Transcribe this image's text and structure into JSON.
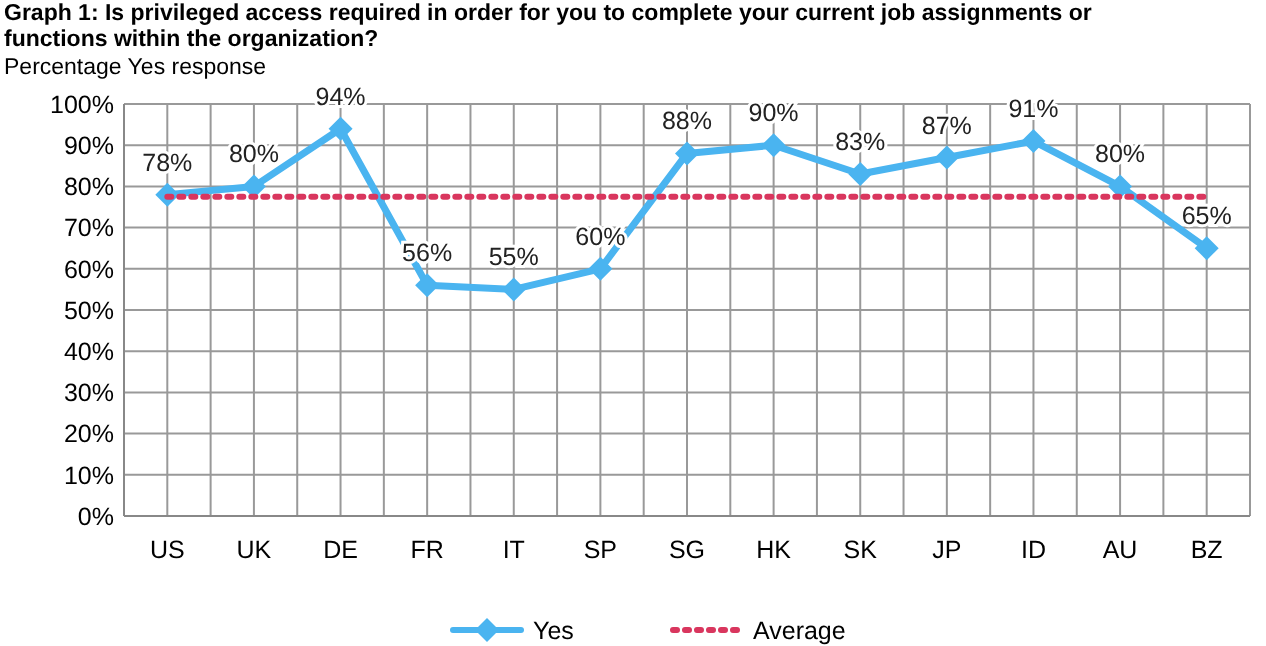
{
  "chart_data": {
    "type": "line",
    "title": "Graph 1: Is privileged access required in order for you to complete your current job assignments or functions within the organization?",
    "subtitle": "Percentage Yes response",
    "categories": [
      "US",
      "UK",
      "DE",
      "FR",
      "IT",
      "SP",
      "SG",
      "HK",
      "SK",
      "JP",
      "ID",
      "AU",
      "BZ"
    ],
    "series": [
      {
        "name": "Yes",
        "color": "#4ab4f0",
        "marker": "diamond",
        "line_style": "solid",
        "values": [
          78,
          80,
          94,
          56,
          55,
          60,
          88,
          90,
          83,
          87,
          91,
          80,
          65
        ],
        "value_labels": [
          "78%",
          "80%",
          "94%",
          "56%",
          "55%",
          "60%",
          "88%",
          "90%",
          "83%",
          "87%",
          "91%",
          "80%",
          "65%"
        ]
      },
      {
        "name": "Average",
        "color": "#d9365e",
        "marker": "none",
        "line_style": "dotted",
        "values": [
          77.5,
          77.5,
          77.5,
          77.5,
          77.5,
          77.5,
          77.5,
          77.5,
          77.5,
          77.5,
          77.5,
          77.5,
          77.5
        ]
      }
    ],
    "ylim": [
      0,
      100
    ],
    "yticks": [
      {
        "value": 0,
        "label": "0%"
      },
      {
        "value": 10,
        "label": "10%"
      },
      {
        "value": 20,
        "label": "20%"
      },
      {
        "value": 30,
        "label": "30%"
      },
      {
        "value": 40,
        "label": "40%"
      },
      {
        "value": 50,
        "label": "50%"
      },
      {
        "value": 60,
        "label": "60%"
      },
      {
        "value": 70,
        "label": "70%"
      },
      {
        "value": 80,
        "label": "80%"
      },
      {
        "value": 90,
        "label": "90%"
      },
      {
        "value": 100,
        "label": "100%"
      }
    ],
    "grid": true,
    "legend": "bottom"
  }
}
